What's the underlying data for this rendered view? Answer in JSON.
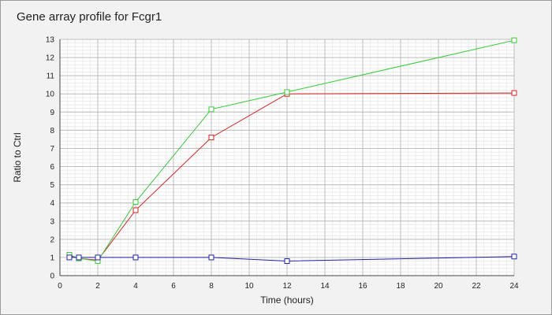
{
  "chart_data": {
    "type": "line",
    "title": "Gene array profile for Fcgr1",
    "xlabel": "Time (hours)",
    "ylabel": "Ratio to Ctrl",
    "xlim": [
      0,
      24
    ],
    "ylim": [
      0,
      13
    ],
    "xticks": [
      0,
      2,
      4,
      6,
      8,
      10,
      12,
      14,
      16,
      18,
      20,
      22,
      24
    ],
    "yticks": [
      0,
      1,
      2,
      3,
      4,
      5,
      6,
      7,
      8,
      9,
      10,
      11,
      12,
      13
    ],
    "grid": true,
    "legend": "none",
    "series": [
      {
        "color": "#dd2222",
        "x": [
          0.5,
          1,
          2,
          4,
          8,
          12,
          24
        ],
        "y": [
          1.1,
          0.95,
          0.85,
          3.6,
          7.6,
          10.0,
          10.05
        ]
      },
      {
        "color": "#33cc33",
        "x": [
          0.5,
          1,
          2,
          4,
          8,
          12,
          24
        ],
        "y": [
          1.15,
          0.95,
          0.8,
          4.05,
          9.15,
          10.1,
          12.95
        ]
      },
      {
        "color": "#2222aa",
        "x": [
          0.5,
          1,
          2,
          4,
          8,
          12,
          24
        ],
        "y": [
          1.0,
          1.0,
          1.0,
          1.0,
          1.0,
          0.8,
          1.05
        ]
      }
    ]
  }
}
